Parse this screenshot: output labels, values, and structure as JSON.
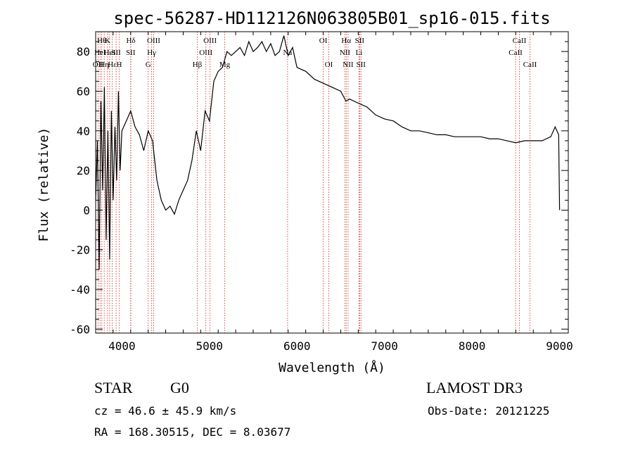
{
  "chart_data": {
    "type": "line",
    "title": "spec-56287-HD112126N063805B01_sp16-015.fits",
    "xlabel": "Wavelength (Å)",
    "ylabel": "Flux (relative)",
    "xlim": [
      3700,
      9100
    ],
    "ylim": [
      -62,
      90
    ],
    "x_ticks": [
      4000,
      5000,
      6000,
      7000,
      8000,
      9000
    ],
    "y_ticks": [
      -60,
      -40,
      -20,
      0,
      20,
      40,
      60,
      80
    ],
    "grid": false,
    "series": [
      {
        "name": "flux",
        "x": [
          3700,
          3720,
          3740,
          3760,
          3780,
          3800,
          3820,
          3840,
          3860,
          3880,
          3900,
          3920,
          3940,
          3960,
          3980,
          4000,
          4050,
          4100,
          4150,
          4200,
          4250,
          4300,
          4350,
          4400,
          4450,
          4500,
          4550,
          4600,
          4650,
          4700,
          4750,
          4800,
          4850,
          4900,
          4950,
          5000,
          5050,
          5100,
          5150,
          5200,
          5250,
          5300,
          5350,
          5400,
          5450,
          5500,
          5550,
          5600,
          5650,
          5700,
          5750,
          5800,
          5850,
          5900,
          5950,
          6000,
          6100,
          6200,
          6300,
          6400,
          6500,
          6560,
          6600,
          6700,
          6800,
          6900,
          7000,
          7100,
          7200,
          7300,
          7400,
          7500,
          7600,
          7700,
          7800,
          7900,
          8000,
          8100,
          8200,
          8300,
          8400,
          8500,
          8600,
          8700,
          8800,
          8900,
          8950,
          8990,
          9000
        ],
        "values": [
          5,
          35,
          -30,
          55,
          10,
          62,
          -15,
          40,
          -25,
          50,
          5,
          42,
          15,
          60,
          20,
          40,
          45,
          50,
          42,
          38,
          30,
          40,
          35,
          15,
          5,
          0,
          2,
          -2,
          5,
          10,
          15,
          25,
          40,
          30,
          50,
          45,
          65,
          70,
          72,
          80,
          78,
          80,
          82,
          78,
          85,
          80,
          82,
          85,
          80,
          84,
          78,
          80,
          88,
          78,
          82,
          72,
          70,
          66,
          64,
          62,
          60,
          55,
          56,
          54,
          52,
          48,
          46,
          45,
          42,
          40,
          40,
          39,
          38,
          38,
          37,
          37,
          37,
          37,
          36,
          36,
          35,
          34,
          35,
          35,
          35,
          37,
          42,
          38,
          0
        ]
      }
    ],
    "line_marks": [
      {
        "x": 3727,
        "row": 2,
        "label": "OII"
      },
      {
        "x": 3750,
        "row": 1,
        "label": "HeI"
      },
      {
        "x": 3770,
        "row": 0,
        "label": "Hθ"
      },
      {
        "x": 3798,
        "row": 2,
        "label": "Hη"
      },
      {
        "x": 3836,
        "row": 0,
        "label": "K"
      },
      {
        "x": 3860,
        "row": 1,
        "label": "HeI"
      },
      {
        "x": 3889,
        "row": 2,
        "label": "Hε"
      },
      {
        "x": 3934,
        "row": 1,
        "label": "SII"
      },
      {
        "x": 3969,
        "row": 2,
        "label": "H"
      },
      {
        "x": 4102,
        "row": 0,
        "label": "Hδ"
      },
      {
        "x": 4100,
        "row": 1,
        "label": "SII"
      },
      {
        "x": 4300,
        "row": 2,
        "label": "G"
      },
      {
        "x": 4340,
        "row": 1,
        "label": "Hγ"
      },
      {
        "x": 4363,
        "row": 0,
        "label": "OIII"
      },
      {
        "x": 4861,
        "row": 2,
        "label": "Hβ"
      },
      {
        "x": 4959,
        "row": 1,
        "label": "OIII"
      },
      {
        "x": 5007,
        "row": 0,
        "label": "OIII"
      },
      {
        "x": 5175,
        "row": 2,
        "label": "Mg"
      },
      {
        "x": 5893,
        "row": 1,
        "label": "Na"
      },
      {
        "x": 6300,
        "row": 0,
        "label": "OI"
      },
      {
        "x": 6364,
        "row": 2,
        "label": "OI"
      },
      {
        "x": 6548,
        "row": 1,
        "label": "NII"
      },
      {
        "x": 6563,
        "row": 0,
        "label": "Hα"
      },
      {
        "x": 6584,
        "row": 2,
        "label": "NII"
      },
      {
        "x": 6708,
        "row": 1,
        "label": "Li"
      },
      {
        "x": 6716,
        "row": 0,
        "label": "SII"
      },
      {
        "x": 6731,
        "row": 2,
        "label": "SII"
      },
      {
        "x": 8498,
        "row": 1,
        "label": "CaII"
      },
      {
        "x": 8542,
        "row": 0,
        "label": "CaII"
      },
      {
        "x": 8662,
        "row": 2,
        "label": "CaII"
      }
    ]
  },
  "info": {
    "object_class": "STAR",
    "subclass": "G0",
    "survey": "LAMOST DR3",
    "velocity": "cz = 46.6 ± 45.9 km/s",
    "obs_date": "Obs-Date: 20121225",
    "coords": "RA = 168.30515, DEC =   8.03677"
  },
  "colors": {
    "line": "#000000",
    "marker": "#cc2222"
  }
}
